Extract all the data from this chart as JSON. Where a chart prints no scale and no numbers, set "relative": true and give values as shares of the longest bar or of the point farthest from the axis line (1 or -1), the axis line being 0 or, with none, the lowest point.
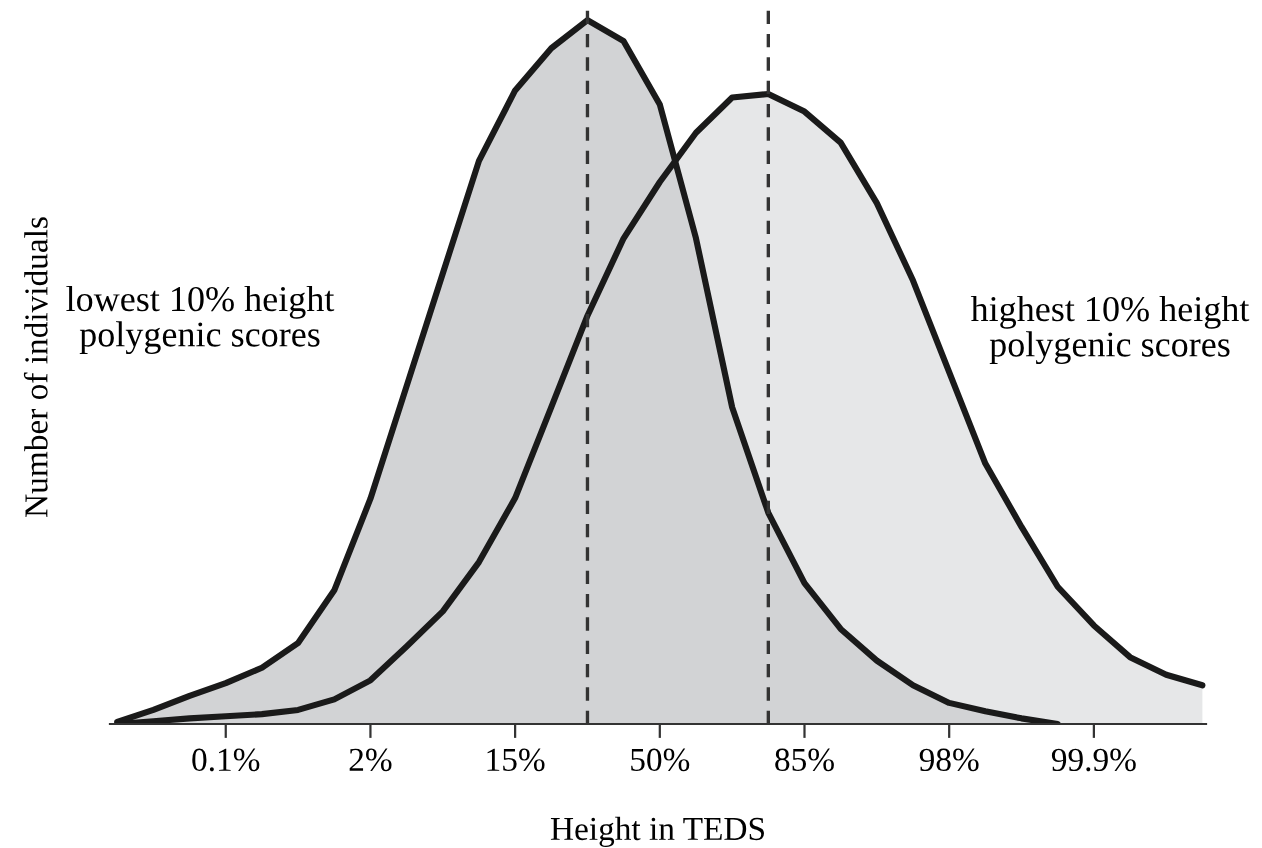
{
  "chart_data": {
    "type": "area",
    "relative": true,
    "xlabel": "Height in TEDS",
    "ylabel": "Number of individuals",
    "categories": [
      null,
      null,
      null,
      "0.1%",
      null,
      null,
      null,
      "2%",
      null,
      null,
      null,
      "15%",
      null,
      null,
      null,
      "50%",
      null,
      null,
      null,
      "85%",
      null,
      null,
      null,
      "98%",
      null,
      null,
      null,
      "99.9%",
      null,
      null,
      null
    ],
    "series": [
      {
        "color": "#e6e7e8",
        "values": [
          0,
          0.004,
          0.008,
          0.011,
          0.014,
          0.02,
          0.035,
          0.062,
          0.11,
          0.16,
          0.23,
          0.321,
          0.45,
          0.58,
          0.69,
          0.77,
          0.84,
          0.89,
          0.895,
          0.87,
          0.826,
          0.74,
          0.63,
          0.5,
          0.37,
          0.28,
          0.195,
          0.14,
          0.095,
          0.07,
          0.055
        ]
      },
      {
        "color": "#d2d3d5",
        "values": [
          0.003,
          0.02,
          0.04,
          0.058,
          0.08,
          0.115,
          0.19,
          0.32,
          0.48,
          0.64,
          0.8,
          0.9,
          0.96,
          1.0,
          0.97,
          0.88,
          0.69,
          0.45,
          0.3,
          0.2,
          0.135,
          0.09,
          0.055,
          0.03,
          0.018,
          0.008,
          0,
          null,
          null,
          null,
          null
        ]
      }
    ],
    "annotations": [
      "lowest 10% height\npolygenic scores",
      "highest 10% height\npolygenic scores"
    ]
  }
}
